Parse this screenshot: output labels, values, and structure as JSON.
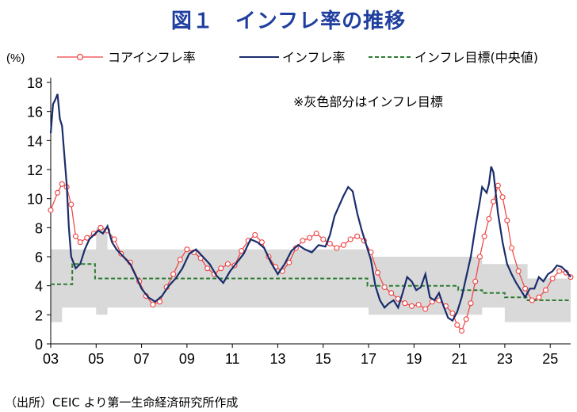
{
  "title": "図１　インフレ率の推移",
  "source": "（出所）CEIC より第一生命経済研究所作成",
  "chart_data": {
    "type": "line",
    "title": "図１　インフレ率の推移",
    "ylabel": "(%)",
    "xlabel": "",
    "ylim": [
      0,
      18
    ],
    "xlim": [
      2003.0,
      2025.9
    ],
    "yticks": [
      0,
      2,
      4,
      6,
      8,
      10,
      12,
      14,
      16,
      18
    ],
    "xticks": [
      {
        "x": 2003,
        "label": "03"
      },
      {
        "x": 2005,
        "label": "05"
      },
      {
        "x": 2007,
        "label": "07"
      },
      {
        "x": 2009,
        "label": "09"
      },
      {
        "x": 2011,
        "label": "11"
      },
      {
        "x": 2013,
        "label": "13"
      },
      {
        "x": 2015,
        "label": "15"
      },
      {
        "x": 2017,
        "label": "17"
      },
      {
        "x": 2019,
        "label": "19"
      },
      {
        "x": 2021,
        "label": "21"
      },
      {
        "x": 2023,
        "label": "23"
      },
      {
        "x": 2025,
        "label": "25"
      }
    ],
    "grid": false,
    "legend_position": "top",
    "annotation": "※灰色部分はインフレ目標",
    "band": {
      "name": "インフレ目標",
      "color": "#d9d9d9",
      "x": [
        2003.0,
        2003.5,
        2003.5,
        2004.0,
        2004.0,
        2005.0,
        2005.0,
        2005.5,
        2005.5,
        2007.0,
        2007.0,
        2016.0,
        2016.0,
        2017.0,
        2017.0,
        2020.0,
        2020.0,
        2021.0,
        2021.0,
        2022.0,
        2022.0,
        2023.0,
        2023.0,
        2024.0,
        2024.0,
        2025.9
      ],
      "lower": [
        1.5,
        1.5,
        2.5,
        2.5,
        2.5,
        2.5,
        2.0,
        2.0,
        2.5,
        2.5,
        2.5,
        2.5,
        2.5,
        2.5,
        2.0,
        2.0,
        2.0,
        2.0,
        2.0,
        2.0,
        2.5,
        2.5,
        1.5,
        1.5,
        1.5,
        1.5
      ],
      "upper": [
        6.5,
        6.5,
        6.5,
        6.5,
        6.5,
        6.5,
        8.0,
        8.0,
        6.5,
        6.5,
        6.5,
        6.5,
        6.5,
        6.5,
        6.0,
        6.0,
        6.0,
        6.0,
        6.0,
        6.0,
        5.5,
        5.5,
        5.5,
        5.5,
        4.5,
        4.5
      ]
    },
    "series": [
      {
        "name": "コアインフレ率",
        "color": "#f04040",
        "style": "line-markers",
        "x": [
          2003.0,
          2003.3,
          2003.5,
          2003.7,
          2003.9,
          2004.1,
          2004.3,
          2004.6,
          2004.9,
          2005.2,
          2005.5,
          2005.8,
          2006.1,
          2006.5,
          2006.9,
          2007.2,
          2007.5,
          2007.8,
          2008.1,
          2008.4,
          2008.7,
          2009.0,
          2009.3,
          2009.6,
          2009.9,
          2010.2,
          2010.5,
          2010.8,
          2011.1,
          2011.4,
          2011.7,
          2012.0,
          2012.3,
          2012.6,
          2012.9,
          2013.2,
          2013.5,
          2013.8,
          2014.1,
          2014.4,
          2014.7,
          2015.0,
          2015.3,
          2015.6,
          2015.9,
          2016.2,
          2016.5,
          2016.8,
          2017.1,
          2017.4,
          2017.7,
          2018.0,
          2018.3,
          2018.6,
          2018.9,
          2019.2,
          2019.5,
          2019.8,
          2020.1,
          2020.4,
          2020.7,
          2020.9,
          2021.1,
          2021.3,
          2021.5,
          2021.7,
          2021.9,
          2022.1,
          2022.3,
          2022.5,
          2022.7,
          2022.9,
          2023.1,
          2023.3,
          2023.6,
          2023.9,
          2024.2,
          2024.5,
          2024.8,
          2025.1,
          2025.4,
          2025.7,
          2025.9
        ],
        "y": [
          9.2,
          10.4,
          11.0,
          10.8,
          9.6,
          7.4,
          7.0,
          7.3,
          7.6,
          8.0,
          7.8,
          7.2,
          6.2,
          5.6,
          4.3,
          3.3,
          2.7,
          2.9,
          3.9,
          4.8,
          5.8,
          6.5,
          6.3,
          5.9,
          5.2,
          4.8,
          5.2,
          5.5,
          5.4,
          6.4,
          7.1,
          7.5,
          7.0,
          6.0,
          5.3,
          5.0,
          5.6,
          6.6,
          7.1,
          7.3,
          7.6,
          7.2,
          6.9,
          6.6,
          6.8,
          7.2,
          7.4,
          7.1,
          6.3,
          4.9,
          3.9,
          3.5,
          3.1,
          2.8,
          2.6,
          2.7,
          2.4,
          2.9,
          3.0,
          2.6,
          2.1,
          1.3,
          0.9,
          1.7,
          2.8,
          4.3,
          6.0,
          7.4,
          8.6,
          9.8,
          10.9,
          10.1,
          8.5,
          6.6,
          5.0,
          3.8,
          3.0,
          3.2,
          3.7,
          4.5,
          5.0,
          4.9,
          4.6
        ]
      },
      {
        "name": "インフレ率",
        "color": "#1a2d6b",
        "style": "line",
        "x": [
          2003.0,
          2003.1,
          2003.2,
          2003.3,
          2003.4,
          2003.5,
          2003.6,
          2003.7,
          2003.8,
          2003.9,
          2004.1,
          2004.3,
          2004.5,
          2004.7,
          2004.9,
          2005.1,
          2005.3,
          2005.5,
          2005.7,
          2005.9,
          2006.2,
          2006.5,
          2006.8,
          2007.0,
          2007.3,
          2007.6,
          2007.9,
          2008.2,
          2008.5,
          2008.8,
          2009.1,
          2009.4,
          2009.7,
          2010.0,
          2010.3,
          2010.6,
          2010.9,
          2011.2,
          2011.5,
          2011.8,
          2012.1,
          2012.4,
          2012.7,
          2013.0,
          2013.3,
          2013.6,
          2013.9,
          2014.2,
          2014.5,
          2014.8,
          2015.1,
          2015.3,
          2015.5,
          2015.7,
          2015.9,
          2016.1,
          2016.3,
          2016.5,
          2016.7,
          2016.9,
          2017.1,
          2017.3,
          2017.5,
          2017.7,
          2017.9,
          2018.1,
          2018.3,
          2018.5,
          2018.7,
          2018.9,
          2019.1,
          2019.3,
          2019.5,
          2019.7,
          2019.9,
          2020.1,
          2020.3,
          2020.5,
          2020.7,
          2020.9,
          2021.1,
          2021.3,
          2021.5,
          2021.7,
          2021.9,
          2022.0,
          2022.2,
          2022.3,
          2022.4,
          2022.5,
          2022.7,
          2022.9,
          2023.1,
          2023.3,
          2023.5,
          2023.7,
          2023.9,
          2024.1,
          2024.3,
          2024.5,
          2024.7,
          2024.9,
          2025.1,
          2025.3,
          2025.5,
          2025.7,
          2025.9
        ],
        "y": [
          14.5,
          16.5,
          16.8,
          17.2,
          15.5,
          15.0,
          13.0,
          11.0,
          8.0,
          6.0,
          5.2,
          5.5,
          6.5,
          7.2,
          7.5,
          7.8,
          7.6,
          8.1,
          7.0,
          6.5,
          6.0,
          5.5,
          4.5,
          3.8,
          3.2,
          2.9,
          3.3,
          4.0,
          4.5,
          5.2,
          6.2,
          6.5,
          6.0,
          5.5,
          4.7,
          4.2,
          5.0,
          5.6,
          6.2,
          7.2,
          7.0,
          6.6,
          5.6,
          4.8,
          5.5,
          6.4,
          6.8,
          6.5,
          6.3,
          6.8,
          6.7,
          7.5,
          8.8,
          9.5,
          10.2,
          10.8,
          10.5,
          9.0,
          7.8,
          6.8,
          5.8,
          4.0,
          3.0,
          2.5,
          2.8,
          3.0,
          2.5,
          3.5,
          4.6,
          4.3,
          3.7,
          3.9,
          4.8,
          3.2,
          3.0,
          3.5,
          2.6,
          1.8,
          1.6,
          2.2,
          3.2,
          4.6,
          6.0,
          8.0,
          9.8,
          10.8,
          10.4,
          11.0,
          12.2,
          11.8,
          9.0,
          7.0,
          5.5,
          4.8,
          4.2,
          3.7,
          3.2,
          3.8,
          3.8,
          4.6,
          4.3,
          4.8,
          5.0,
          5.4,
          5.3,
          5.0,
          4.6
        ]
      },
      {
        "name": "インフレ目標(中央値)",
        "color": "#2e7d32",
        "style": "dashed",
        "x": [
          2003.0,
          2003.95,
          2003.95,
          2004.95,
          2004.95,
          2016.95,
          2016.95,
          2020.95,
          2020.95,
          2022.0,
          2022.0,
          2023.0,
          2023.0,
          2024.0,
          2024.0,
          2025.9
        ],
        "y": [
          4.1,
          4.1,
          5.5,
          5.5,
          4.5,
          4.5,
          4.0,
          4.0,
          3.7,
          3.7,
          3.5,
          3.5,
          3.2,
          3.2,
          3.0,
          3.0
        ]
      }
    ]
  }
}
